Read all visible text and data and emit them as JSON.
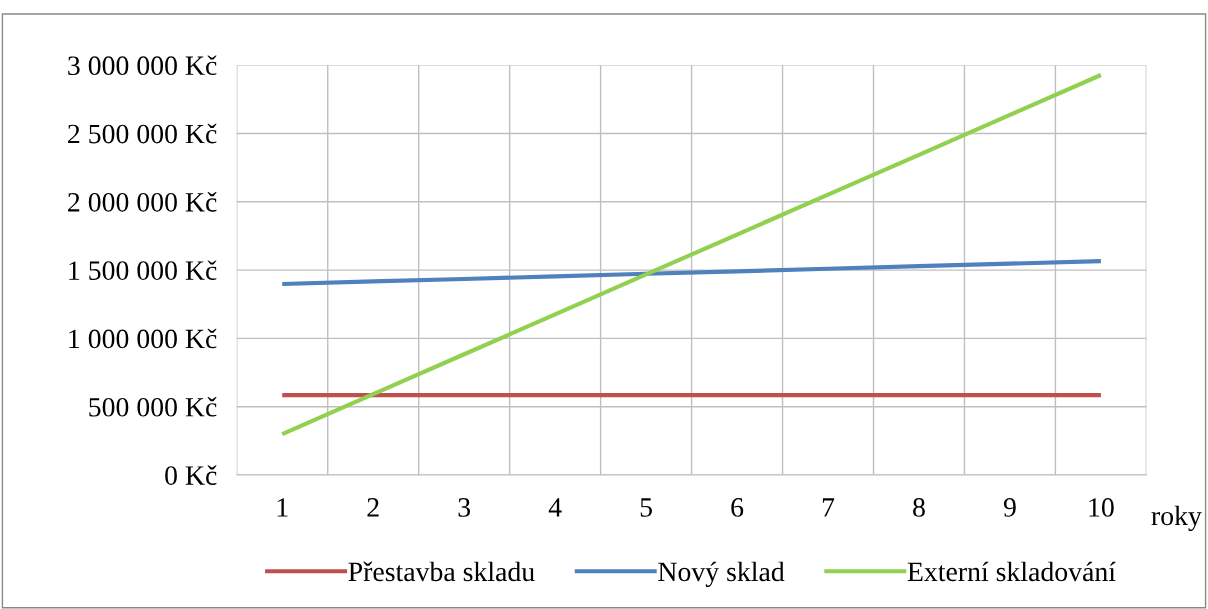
{
  "chart_data": {
    "type": "line",
    "xlabel": "roky",
    "categories": [
      "1",
      "2",
      "3",
      "4",
      "5",
      "6",
      "7",
      "8",
      "9",
      "10"
    ],
    "series": [
      {
        "name": "Přestavba skladu",
        "color": "#c0504d",
        "values": [
          585000,
          585000,
          585000,
          585000,
          585000,
          585000,
          585000,
          585000,
          585000,
          585000
        ]
      },
      {
        "name": "Nový sklad",
        "color": "#4f81bd",
        "values": [
          1398000,
          1417000,
          1435000,
          1454000,
          1473000,
          1491000,
          1510000,
          1529000,
          1547000,
          1566000
        ]
      },
      {
        "name": "Externí skladování",
        "color": "#92d050",
        "values": [
          300000,
          592000,
          884000,
          1176000,
          1468000,
          1760000,
          2052000,
          2344000,
          2636000,
          2928000
        ]
      }
    ],
    "ylim": [
      0,
      3000000
    ],
    "yticks": [
      {
        "value": 0,
        "label": "0 Kč"
      },
      {
        "value": 500000,
        "label": "500 000 Kč"
      },
      {
        "value": 1000000,
        "label": "1 000 000 Kč"
      },
      {
        "value": 1500000,
        "label": "1 500 000 Kč"
      },
      {
        "value": 2000000,
        "label": "2 000 000 Kč"
      },
      {
        "value": 2500000,
        "label": "2 500 000 Kč"
      },
      {
        "value": 3000000,
        "label": "3 000 000 Kč"
      }
    ],
    "grid": true,
    "legend": "bottom",
    "marker": "none",
    "line_style": "solid"
  }
}
